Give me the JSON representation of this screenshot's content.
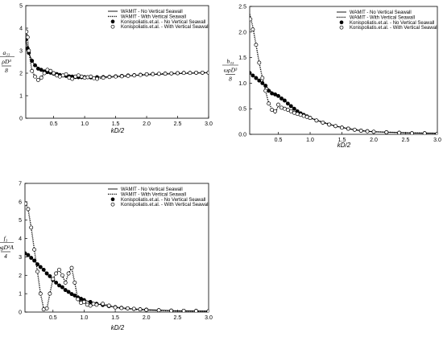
{
  "chart_data": [
    {
      "type": "line",
      "panel": "top-left",
      "xlabel": "kD/2",
      "ylabel_parts": [
        "a₃₃",
        "ρD³",
        "8"
      ],
      "xlim": [
        0.05,
        3.0
      ],
      "ylim": [
        0,
        5
      ],
      "xticks": [
        "0.5",
        "1.0",
        "1.5",
        "2.0",
        "2.5",
        "3.0"
      ],
      "yticks": [
        "0",
        "1",
        "2",
        "3",
        "4",
        "5"
      ],
      "grid": false,
      "legend_position": "top-right",
      "series": [
        {
          "name": "WAMIT - No Vertical Seawall",
          "style": "solid",
          "x": [
            0.05,
            0.08,
            0.1,
            0.15,
            0.2,
            0.3,
            0.4,
            0.5,
            0.6,
            0.7,
            0.8,
            1.0,
            1.2,
            1.5,
            2.0,
            2.5,
            3.0
          ],
          "y": [
            3.5,
            3.1,
            2.9,
            2.55,
            2.35,
            2.15,
            2.05,
            1.98,
            1.92,
            1.88,
            1.85,
            1.82,
            1.82,
            1.86,
            1.93,
            1.98,
            2.02
          ]
        },
        {
          "name": "WAMIT - With Vertical Seawall",
          "style": "dotted",
          "x": [
            0.05,
            0.07,
            0.1,
            0.15,
            0.2,
            0.25,
            0.3,
            0.35,
            0.4,
            0.5,
            0.6,
            0.7,
            0.8,
            0.9,
            1.0,
            1.1,
            1.2,
            1.4,
            1.6,
            1.8,
            2.0,
            2.5,
            3.0
          ],
          "y": [
            3.7,
            3.8,
            3.0,
            2.1,
            1.85,
            1.7,
            1.8,
            2.0,
            2.2,
            2.05,
            1.85,
            1.95,
            1.75,
            1.9,
            1.8,
            1.85,
            1.75,
            1.82,
            1.85,
            1.9,
            1.95,
            2.0,
            2.02
          ]
        },
        {
          "name": "Konispoliatis.et.al. - No Vertical Seawall",
          "marker": "filled-circle",
          "x": [
            0.05,
            0.08,
            0.1,
            0.15,
            0.2,
            0.25,
            0.3,
            0.35,
            0.4,
            0.45,
            0.5,
            0.55,
            0.6,
            0.65,
            0.7,
            0.75,
            0.8,
            0.85,
            0.9,
            0.95,
            1.0,
            1.1,
            1.2,
            1.3,
            1.4,
            1.5,
            1.6,
            1.7,
            1.8,
            1.9,
            2.0,
            2.1,
            2.2,
            2.3,
            2.4,
            2.5,
            2.6,
            2.7,
            2.8,
            2.9,
            3.0
          ],
          "y": [
            3.5,
            3.1,
            2.9,
            2.55,
            2.35,
            2.2,
            2.15,
            2.08,
            2.05,
            2.02,
            1.98,
            1.96,
            1.92,
            1.9,
            1.88,
            1.86,
            1.85,
            1.83,
            1.82,
            1.82,
            1.82,
            1.81,
            1.82,
            1.83,
            1.84,
            1.86,
            1.88,
            1.9,
            1.91,
            1.93,
            1.95,
            1.96,
            1.97,
            1.98,
            1.99,
            2.0,
            2.01,
            2.01,
            2.02,
            2.02,
            2.02
          ]
        },
        {
          "name": "Konispoliatis.et.al. - With Vertical Seawall",
          "marker": "open-circle",
          "x": [
            0.06,
            0.08,
            0.1,
            0.15,
            0.2,
            0.25,
            0.3,
            0.35,
            0.4,
            0.45,
            0.5,
            0.55,
            0.6,
            0.65,
            0.7,
            0.75,
            0.8,
            0.85,
            0.9,
            0.95,
            1.0,
            1.05,
            1.1,
            1.15,
            1.2,
            1.3,
            1.4,
            1.5,
            1.6,
            1.7,
            1.8,
            1.9,
            2.0,
            2.1,
            2.2,
            2.3,
            2.4,
            2.5,
            2.6,
            2.7,
            2.8,
            2.9,
            3.0
          ],
          "y": [
            3.85,
            3.6,
            3.0,
            2.1,
            1.85,
            1.7,
            1.8,
            2.0,
            2.15,
            2.1,
            2.0,
            1.9,
            1.85,
            1.9,
            1.95,
            1.8,
            1.75,
            1.85,
            1.9,
            1.85,
            1.8,
            1.82,
            1.85,
            1.78,
            1.75,
            1.8,
            1.83,
            1.85,
            1.86,
            1.88,
            1.9,
            1.92,
            1.95,
            1.96,
            1.97,
            1.98,
            1.99,
            2.0,
            2.01,
            2.01,
            2.02,
            2.02,
            2.02
          ]
        }
      ]
    },
    {
      "type": "line",
      "panel": "top-right",
      "xlabel": "kD/2",
      "ylabel_parts": [
        "b₃₃",
        "ωρD³",
        "8"
      ],
      "xlim": [
        0.05,
        3.0
      ],
      "ylim": [
        0,
        2.5
      ],
      "xticks": [
        "0.5",
        "1.0",
        "1.5",
        "2.0",
        "2.5",
        "3.0"
      ],
      "yticks": [
        "0.0",
        "0.5",
        "1.0",
        "1.5",
        "2.0",
        "2.5"
      ],
      "grid": false,
      "legend_position": "top-right",
      "series": [
        {
          "name": "WAMIT - No Vertical Seawall",
          "style": "solid",
          "x": [
            0.05,
            0.1,
            0.2,
            0.3,
            0.4,
            0.5,
            0.6,
            0.7,
            0.8,
            0.9,
            1.0,
            1.2,
            1.4,
            1.6,
            1.8,
            2.0,
            2.5,
            3.0
          ],
          "y": [
            1.2,
            1.15,
            1.05,
            0.95,
            0.82,
            0.75,
            0.66,
            0.55,
            0.45,
            0.38,
            0.32,
            0.23,
            0.16,
            0.11,
            0.07,
            0.05,
            0.03,
            0.02
          ]
        },
        {
          "name": "WAMIT - With Vertical Seawall",
          "style": "dotted",
          "x": [
            0.05,
            0.1,
            0.15,
            0.2,
            0.25,
            0.3,
            0.35,
            0.4,
            0.45,
            0.5,
            0.55,
            0.6,
            0.7,
            0.8,
            0.9,
            1.0,
            1.2,
            1.4,
            1.6,
            1.8,
            2.0,
            2.5,
            3.0
          ],
          "y": [
            2.35,
            2.1,
            1.75,
            1.4,
            1.1,
            0.85,
            0.6,
            0.5,
            0.42,
            0.55,
            0.5,
            0.5,
            0.45,
            0.4,
            0.36,
            0.32,
            0.24,
            0.16,
            0.11,
            0.07,
            0.05,
            0.03,
            0.02
          ]
        },
        {
          "name": "Konispoliatis.et.al. - No Vertical Seawall",
          "marker": "filled-circle",
          "x": [
            0.05,
            0.1,
            0.15,
            0.2,
            0.25,
            0.3,
            0.35,
            0.4,
            0.45,
            0.5,
            0.55,
            0.6,
            0.65,
            0.7,
            0.75,
            0.8,
            0.85,
            0.9,
            0.95,
            1.0,
            1.1,
            1.2,
            1.3,
            1.4,
            1.5,
            1.6,
            1.7,
            1.8,
            1.9,
            2.0,
            2.2,
            2.4,
            2.6,
            2.8,
            3.0
          ],
          "y": [
            1.2,
            1.15,
            1.1,
            1.05,
            1.0,
            0.95,
            0.85,
            0.8,
            0.78,
            0.75,
            0.7,
            0.66,
            0.6,
            0.55,
            0.5,
            0.45,
            0.41,
            0.38,
            0.35,
            0.32,
            0.27,
            0.23,
            0.19,
            0.16,
            0.13,
            0.11,
            0.09,
            0.07,
            0.06,
            0.05,
            0.04,
            0.03,
            0.02,
            0.02,
            0.01
          ]
        },
        {
          "name": "Konispoliatis.et.al. - With Vertical Seawall",
          "marker": "open-circle",
          "x": [
            0.06,
            0.1,
            0.15,
            0.2,
            0.25,
            0.3,
            0.35,
            0.4,
            0.45,
            0.5,
            0.55,
            0.6,
            0.65,
            0.7,
            0.75,
            0.8,
            0.85,
            0.9,
            0.95,
            1.0,
            1.1,
            1.2,
            1.3,
            1.4,
            1.5,
            1.6,
            1.7,
            1.8,
            1.9,
            2.0,
            2.2,
            2.4,
            2.6,
            2.8,
            3.0
          ],
          "y": [
            2.25,
            2.05,
            1.75,
            1.4,
            1.1,
            0.85,
            0.6,
            0.48,
            0.45,
            0.58,
            0.52,
            0.5,
            0.48,
            0.45,
            0.42,
            0.4,
            0.38,
            0.36,
            0.34,
            0.32,
            0.27,
            0.23,
            0.19,
            0.16,
            0.13,
            0.11,
            0.09,
            0.07,
            0.06,
            0.05,
            0.04,
            0.03,
            0.02,
            0.02,
            0.01
          ]
        }
      ]
    },
    {
      "type": "line",
      "panel": "bottom-left",
      "xlabel": "kD/2",
      "ylabel_parts": [
        "f₃",
        "ρgD²A",
        "4"
      ],
      "xlim": [
        0.05,
        3.0
      ],
      "ylim": [
        0,
        7
      ],
      "xticks": [
        "0.5",
        "1.0",
        "1.5",
        "2.0",
        "2.5",
        "3.0"
      ],
      "yticks": [
        "0",
        "1",
        "2",
        "3",
        "4",
        "5",
        "6",
        "7"
      ],
      "grid": false,
      "legend_position": "top-right",
      "series": [
        {
          "name": "WAMIT - No Vertical Seawall",
          "style": "solid",
          "x": [
            0.05,
            0.1,
            0.2,
            0.3,
            0.4,
            0.5,
            0.6,
            0.7,
            0.8,
            0.9,
            1.0,
            1.2,
            1.4,
            1.6,
            1.8,
            2.0,
            2.5,
            3.0
          ],
          "y": [
            3.2,
            3.1,
            2.8,
            2.45,
            2.1,
            1.75,
            1.45,
            1.2,
            0.98,
            0.8,
            0.65,
            0.45,
            0.32,
            0.23,
            0.17,
            0.13,
            0.07,
            0.05
          ]
        },
        {
          "name": "WAMIT - With Vertical Seawall",
          "style": "dotted",
          "x": [
            0.05,
            0.1,
            0.15,
            0.2,
            0.25,
            0.3,
            0.35,
            0.4,
            0.45,
            0.5,
            0.55,
            0.6,
            0.65,
            0.7,
            0.75,
            0.8,
            0.85,
            0.9,
            0.95,
            1.0,
            1.1,
            1.2,
            1.3,
            1.4,
            1.5,
            1.6,
            1.8,
            2.0,
            2.5,
            3.0
          ],
          "y": [
            6.0,
            5.6,
            4.6,
            3.4,
            2.2,
            1.0,
            0.2,
            0.15,
            1.0,
            1.8,
            2.1,
            2.3,
            2.0,
            1.6,
            2.1,
            2.4,
            1.6,
            0.7,
            0.5,
            0.55,
            0.35,
            0.4,
            0.45,
            0.35,
            0.25,
            0.2,
            0.15,
            0.1,
            0.06,
            0.05
          ]
        },
        {
          "name": "Konispoliatis.et.al. - No Vertical Seawall",
          "marker": "filled-circle",
          "x": [
            0.05,
            0.1,
            0.15,
            0.2,
            0.25,
            0.3,
            0.35,
            0.4,
            0.45,
            0.5,
            0.55,
            0.6,
            0.65,
            0.7,
            0.75,
            0.8,
            0.85,
            0.9,
            0.95,
            1.0,
            1.1,
            1.2,
            1.3,
            1.4,
            1.5,
            1.6,
            1.7,
            1.8,
            1.9,
            2.0,
            2.2,
            2.4,
            2.6,
            2.8,
            3.0
          ],
          "y": [
            3.2,
            3.1,
            2.95,
            2.8,
            2.6,
            2.45,
            2.3,
            2.1,
            1.95,
            1.75,
            1.6,
            1.45,
            1.35,
            1.2,
            1.1,
            0.98,
            0.9,
            0.8,
            0.72,
            0.65,
            0.55,
            0.45,
            0.38,
            0.32,
            0.27,
            0.23,
            0.2,
            0.17,
            0.15,
            0.13,
            0.1,
            0.08,
            0.07,
            0.06,
            0.05
          ]
        },
        {
          "name": "Konispoliatis.et.al. - With Vertical Seawall",
          "marker": "open-circle",
          "x": [
            0.06,
            0.1,
            0.15,
            0.2,
            0.25,
            0.3,
            0.35,
            0.4,
            0.45,
            0.5,
            0.55,
            0.6,
            0.65,
            0.7,
            0.75,
            0.8,
            0.85,
            0.9,
            0.95,
            1.0,
            1.05,
            1.1,
            1.15,
            1.2,
            1.3,
            1.4,
            1.5,
            1.6,
            1.7,
            1.8,
            1.9,
            2.0,
            2.2,
            2.4,
            2.6,
            2.8,
            3.0
          ],
          "y": [
            5.9,
            5.6,
            4.6,
            3.4,
            2.2,
            1.0,
            0.15,
            0.2,
            1.0,
            1.8,
            2.1,
            2.3,
            2.0,
            1.6,
            2.1,
            2.4,
            1.6,
            0.7,
            0.5,
            0.55,
            0.4,
            0.35,
            0.45,
            0.4,
            0.45,
            0.35,
            0.25,
            0.22,
            0.2,
            0.18,
            0.15,
            0.12,
            0.1,
            0.08,
            0.07,
            0.06,
            0.05
          ]
        }
      ]
    }
  ]
}
